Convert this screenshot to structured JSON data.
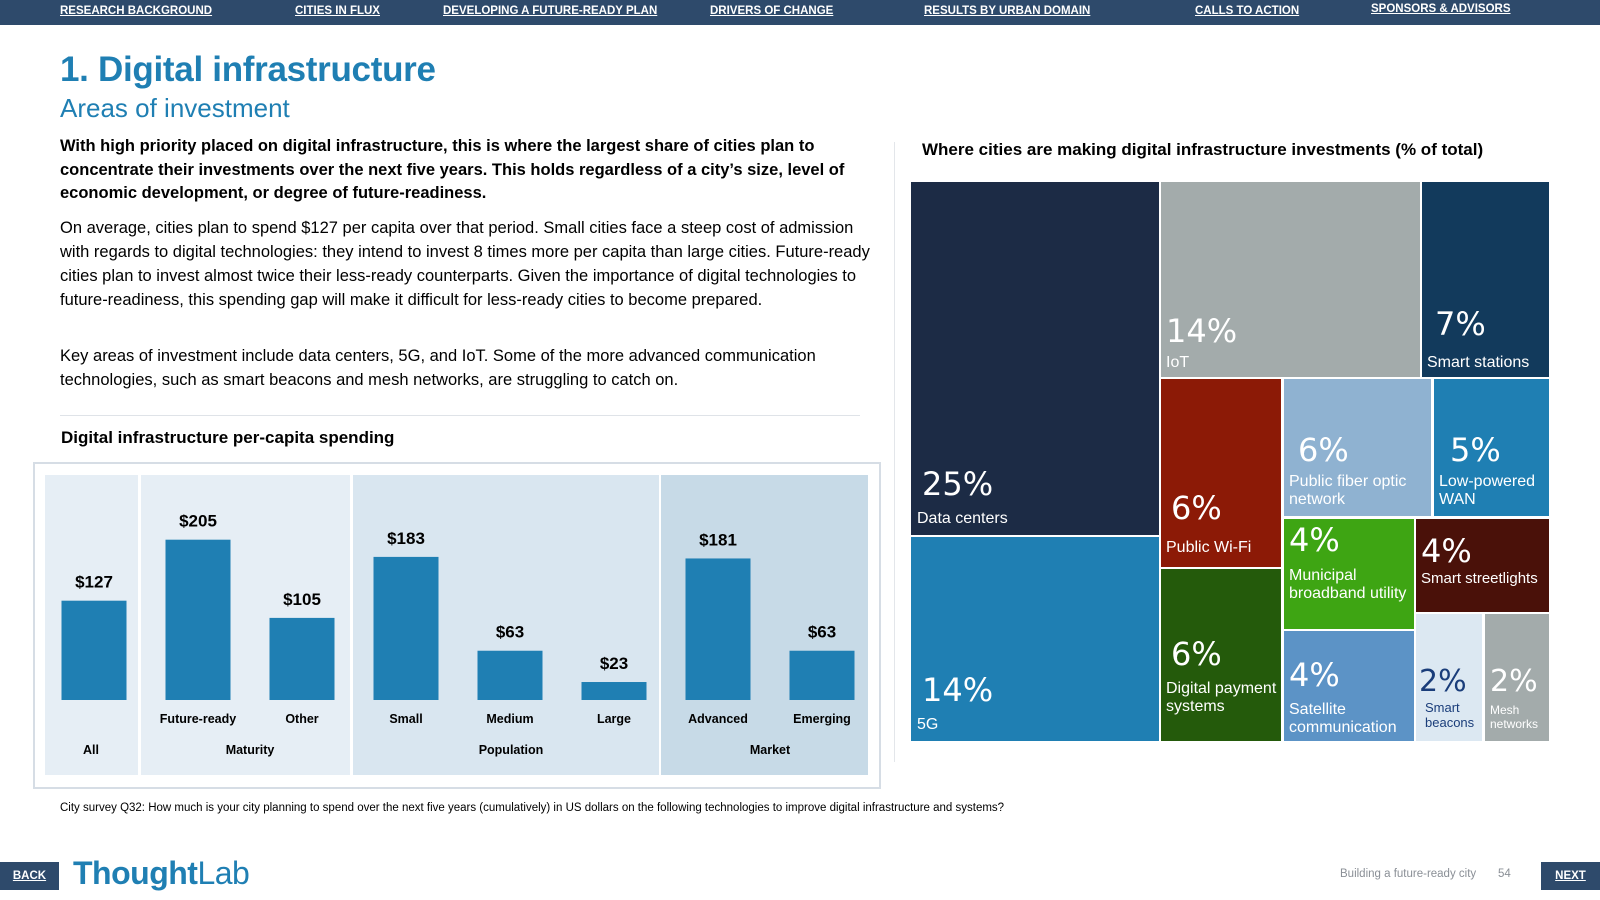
{
  "nav": {
    "items": [
      "RESEARCH BACKGROUND",
      "CITIES IN FLUX",
      "DEVELOPING A FUTURE-READY PLAN",
      "DRIVERS OF CHANGE",
      "RESULTS BY URBAN DOMAIN",
      "CALLS TO ACTION",
      "SPONSORS & ADVISORS"
    ]
  },
  "heading": {
    "title": "1. Digital infrastructure",
    "subtitle": "Areas of investment"
  },
  "body": {
    "lead": "With high priority placed on digital infrastructure, this is where the largest share of cities plan to concentrate their investments over the next five years. This holds regardless of a city’s size,  level of economic development, or degree of future-readiness.",
    "para1": "On average, cities plan to spend $127 per capita over that period. Small cities face a steep cost of admission with regards to digital technologies: they intend to invest 8 times more per capita than large cities. Future-ready cities plan to invest almost twice their less-ready counterparts. Given the importance of digital technologies to future-readiness, this spending gap will make it difficult for less-ready cities to become prepared.",
    "para2": "Key areas of investment include data centers, 5G, and IoT. Some of the more advanced communication technologies, such as smart beacons and mesh networks, are struggling to catch on."
  },
  "bar_chart": {
    "title": "Digital infrastructure per-capita spending",
    "groups": [
      "All",
      "Maturity",
      "Population",
      "Market"
    ]
  },
  "chart_data": [
    {
      "type": "bar",
      "title": "Digital infrastructure per-capita spending",
      "categories": [
        "",
        "Future-ready",
        "Other",
        "Small",
        "Medium",
        "Large",
        "Advanced",
        "Emerging"
      ],
      "groups": [
        "All",
        "Maturity",
        "Maturity",
        "Population",
        "Population",
        "Population",
        "Market",
        "Market"
      ],
      "values": [
        127,
        205,
        105,
        183,
        63,
        23,
        181,
        63
      ],
      "data_labels": [
        "$127",
        "$205",
        "$105",
        "$183",
        "$63",
        "$23",
        "$181",
        "$63"
      ],
      "ylim": [
        0,
        240
      ],
      "bar_color": "#1f7fb3",
      "grid": false
    },
    {
      "type": "treemap",
      "title": "Where cities are making digital infrastructure investments (% of total)",
      "items": [
        {
          "label": "Data centers",
          "value": 25,
          "text": "25%",
          "color": "#1c2b45"
        },
        {
          "label": "5G",
          "value": 14,
          "text": "14%",
          "color": "#1f7fb3"
        },
        {
          "label": "IoT",
          "value": 14,
          "text": "14%",
          "color": "#a3abab"
        },
        {
          "label": "Smart stations",
          "value": 7,
          "text": "7%",
          "color": "#123a5c"
        },
        {
          "label": "Public Wi-Fi",
          "value": 6,
          "text": "6%",
          "color": "#8c1a06"
        },
        {
          "label": "Public fiber optic network",
          "value": 6,
          "text": "6%",
          "color": "#8fb2d1"
        },
        {
          "label": "Low-powered WAN",
          "value": 5,
          "text": "5%",
          "color": "#1f7fb3"
        },
        {
          "label": "Digital payment systems",
          "value": 6,
          "text": "6%",
          "color": "#245a0b"
        },
        {
          "label": "Municipal broadband utility",
          "value": 4,
          "text": "4%",
          "color": "#3ea513"
        },
        {
          "label": "Smart streetlights",
          "value": 4,
          "text": "4%",
          "color": "#4a1109"
        },
        {
          "label": "Satellite communication",
          "value": 4,
          "text": "4%",
          "color": "#5c93c6"
        },
        {
          "label": "Smart beacons",
          "value": 2,
          "text": "2%",
          "color": "#dce8f2"
        },
        {
          "label": "Mesh networks",
          "value": 2,
          "text": "2%",
          "color": "#a3abab"
        }
      ]
    }
  ],
  "footnote": "City survey Q32: How much is your city planning to spend over the next five years (cumulatively) in US dollars on the following technologies to improve digital infrastructure and systems?",
  "footer": {
    "back": "BACK",
    "next": "NEXT",
    "logo_a": "Thought",
    "logo_b": "Lab",
    "caption": "Building a future-ready city",
    "page": "54"
  }
}
